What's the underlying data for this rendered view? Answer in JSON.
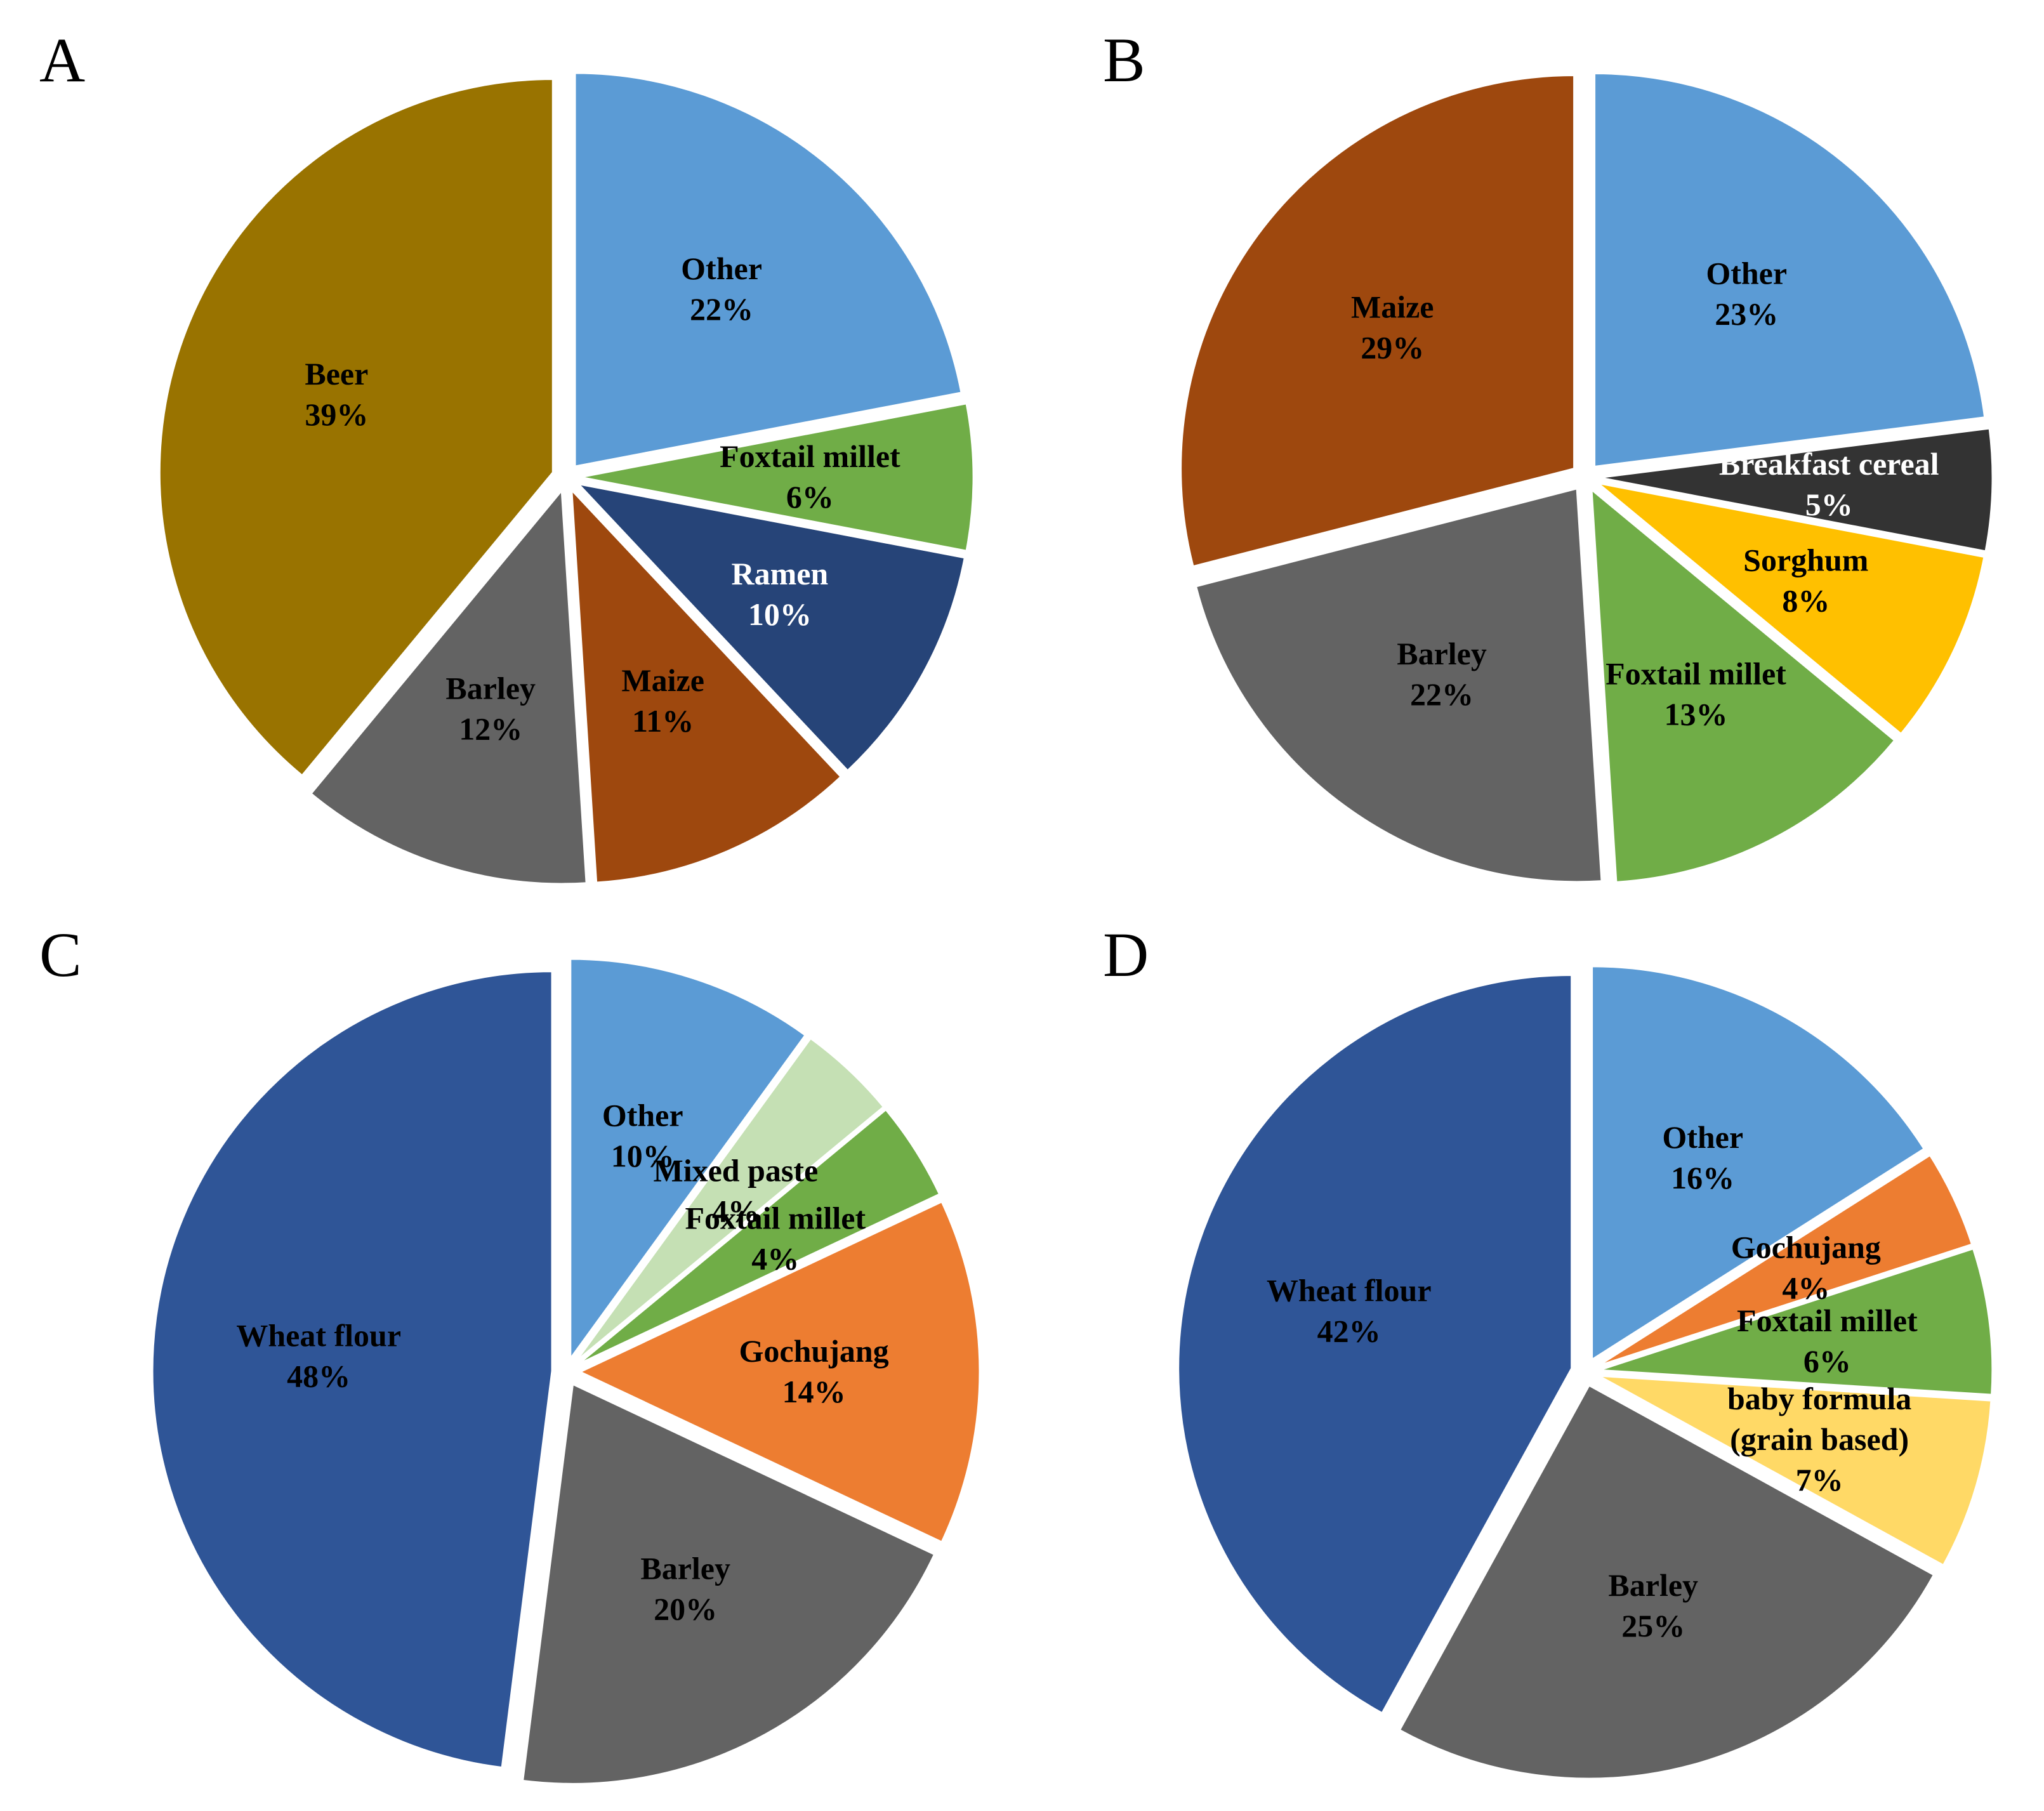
{
  "chart_data": [
    {
      "panel": "A",
      "type": "pie",
      "title": "",
      "slices": [
        {
          "label": "Other",
          "value": 22,
          "pct_text": "22%",
          "color": "#5b9bd5",
          "text_color": "#000000"
        },
        {
          "label": "Foxtail millet",
          "value": 6,
          "pct_text": "6%",
          "color": "#70ad47",
          "text_color": "#000000"
        },
        {
          "label": "Ramen",
          "value": 10,
          "pct_text": "10%",
          "color": "#264478",
          "text_color": "#ffffff"
        },
        {
          "label": "Maize",
          "value": 11,
          "pct_text": "11%",
          "color": "#9e480e",
          "text_color": "#000000"
        },
        {
          "label": "Barley",
          "value": 12,
          "pct_text": "12%",
          "color": "#636363",
          "text_color": "#000000"
        },
        {
          "label": "Beer",
          "value": 39,
          "pct_text": "39%",
          "color": "#997300",
          "text_color": "#000000"
        }
      ]
    },
    {
      "panel": "B",
      "type": "pie",
      "title": "",
      "slices": [
        {
          "label": "Other",
          "value": 23,
          "pct_text": "23%",
          "color": "#5b9bd5",
          "text_color": "#000000"
        },
        {
          "label": "Breakfast cereal",
          "value": 5,
          "pct_text": "5%",
          "color": "#333333",
          "text_color": "#ffffff"
        },
        {
          "label": "Sorghum",
          "value": 8,
          "pct_text": "8%",
          "color": "#ffc000",
          "text_color": "#000000"
        },
        {
          "label": "Foxtail millet",
          "value": 13,
          "pct_text": "13%",
          "color": "#70ad47",
          "text_color": "#000000"
        },
        {
          "label": "Barley",
          "value": 22,
          "pct_text": "22%",
          "color": "#636363",
          "text_color": "#000000"
        },
        {
          "label": "Maize",
          "value": 29,
          "pct_text": "29%",
          "color": "#9e480e",
          "text_color": "#000000"
        }
      ]
    },
    {
      "panel": "C",
      "type": "pie",
      "title": "",
      "slices": [
        {
          "label": "Other",
          "value": 10,
          "pct_text": "10%",
          "color": "#5b9bd5",
          "text_color": "#000000"
        },
        {
          "label": "Mixed paste",
          "value": 4,
          "pct_text": "4%",
          "color": "#c5e0b4",
          "text_color": "#000000"
        },
        {
          "label": "Foxtail millet",
          "value": 4,
          "pct_text": "4%",
          "color": "#70ad47",
          "text_color": "#000000"
        },
        {
          "label": "Gochujang",
          "value": 14,
          "pct_text": "14%",
          "color": "#ed7d31",
          "text_color": "#000000"
        },
        {
          "label": "Barley",
          "value": 20,
          "pct_text": "20%",
          "color": "#636363",
          "text_color": "#000000"
        },
        {
          "label": "Wheat flour",
          "value": 48,
          "pct_text": "48%",
          "color": "#2f5597",
          "text_color": "#000000"
        }
      ]
    },
    {
      "panel": "D",
      "type": "pie",
      "title": "",
      "slices": [
        {
          "label": "Other",
          "value": 16,
          "pct_text": "16%",
          "color": "#5b9bd5",
          "text_color": "#000000"
        },
        {
          "label": "Gochujang",
          "value": 4,
          "pct_text": "4%",
          "color": "#ed7d31",
          "text_color": "#000000"
        },
        {
          "label": "Foxtail millet",
          "value": 6,
          "pct_text": "6%",
          "color": "#70ad47",
          "text_color": "#000000"
        },
        {
          "label": [
            "baby formula",
            "(grain based)"
          ],
          "value": 7,
          "pct_text": "7%",
          "color": "#ffd966",
          "text_color": "#000000"
        },
        {
          "label": "Barley",
          "value": 25,
          "pct_text": "25%",
          "color": "#636363",
          "text_color": "#000000"
        },
        {
          "label": "Wheat flour",
          "value": 42,
          "pct_text": "42%",
          "color": "#2f5597",
          "text_color": "#000000"
        }
      ]
    }
  ]
}
